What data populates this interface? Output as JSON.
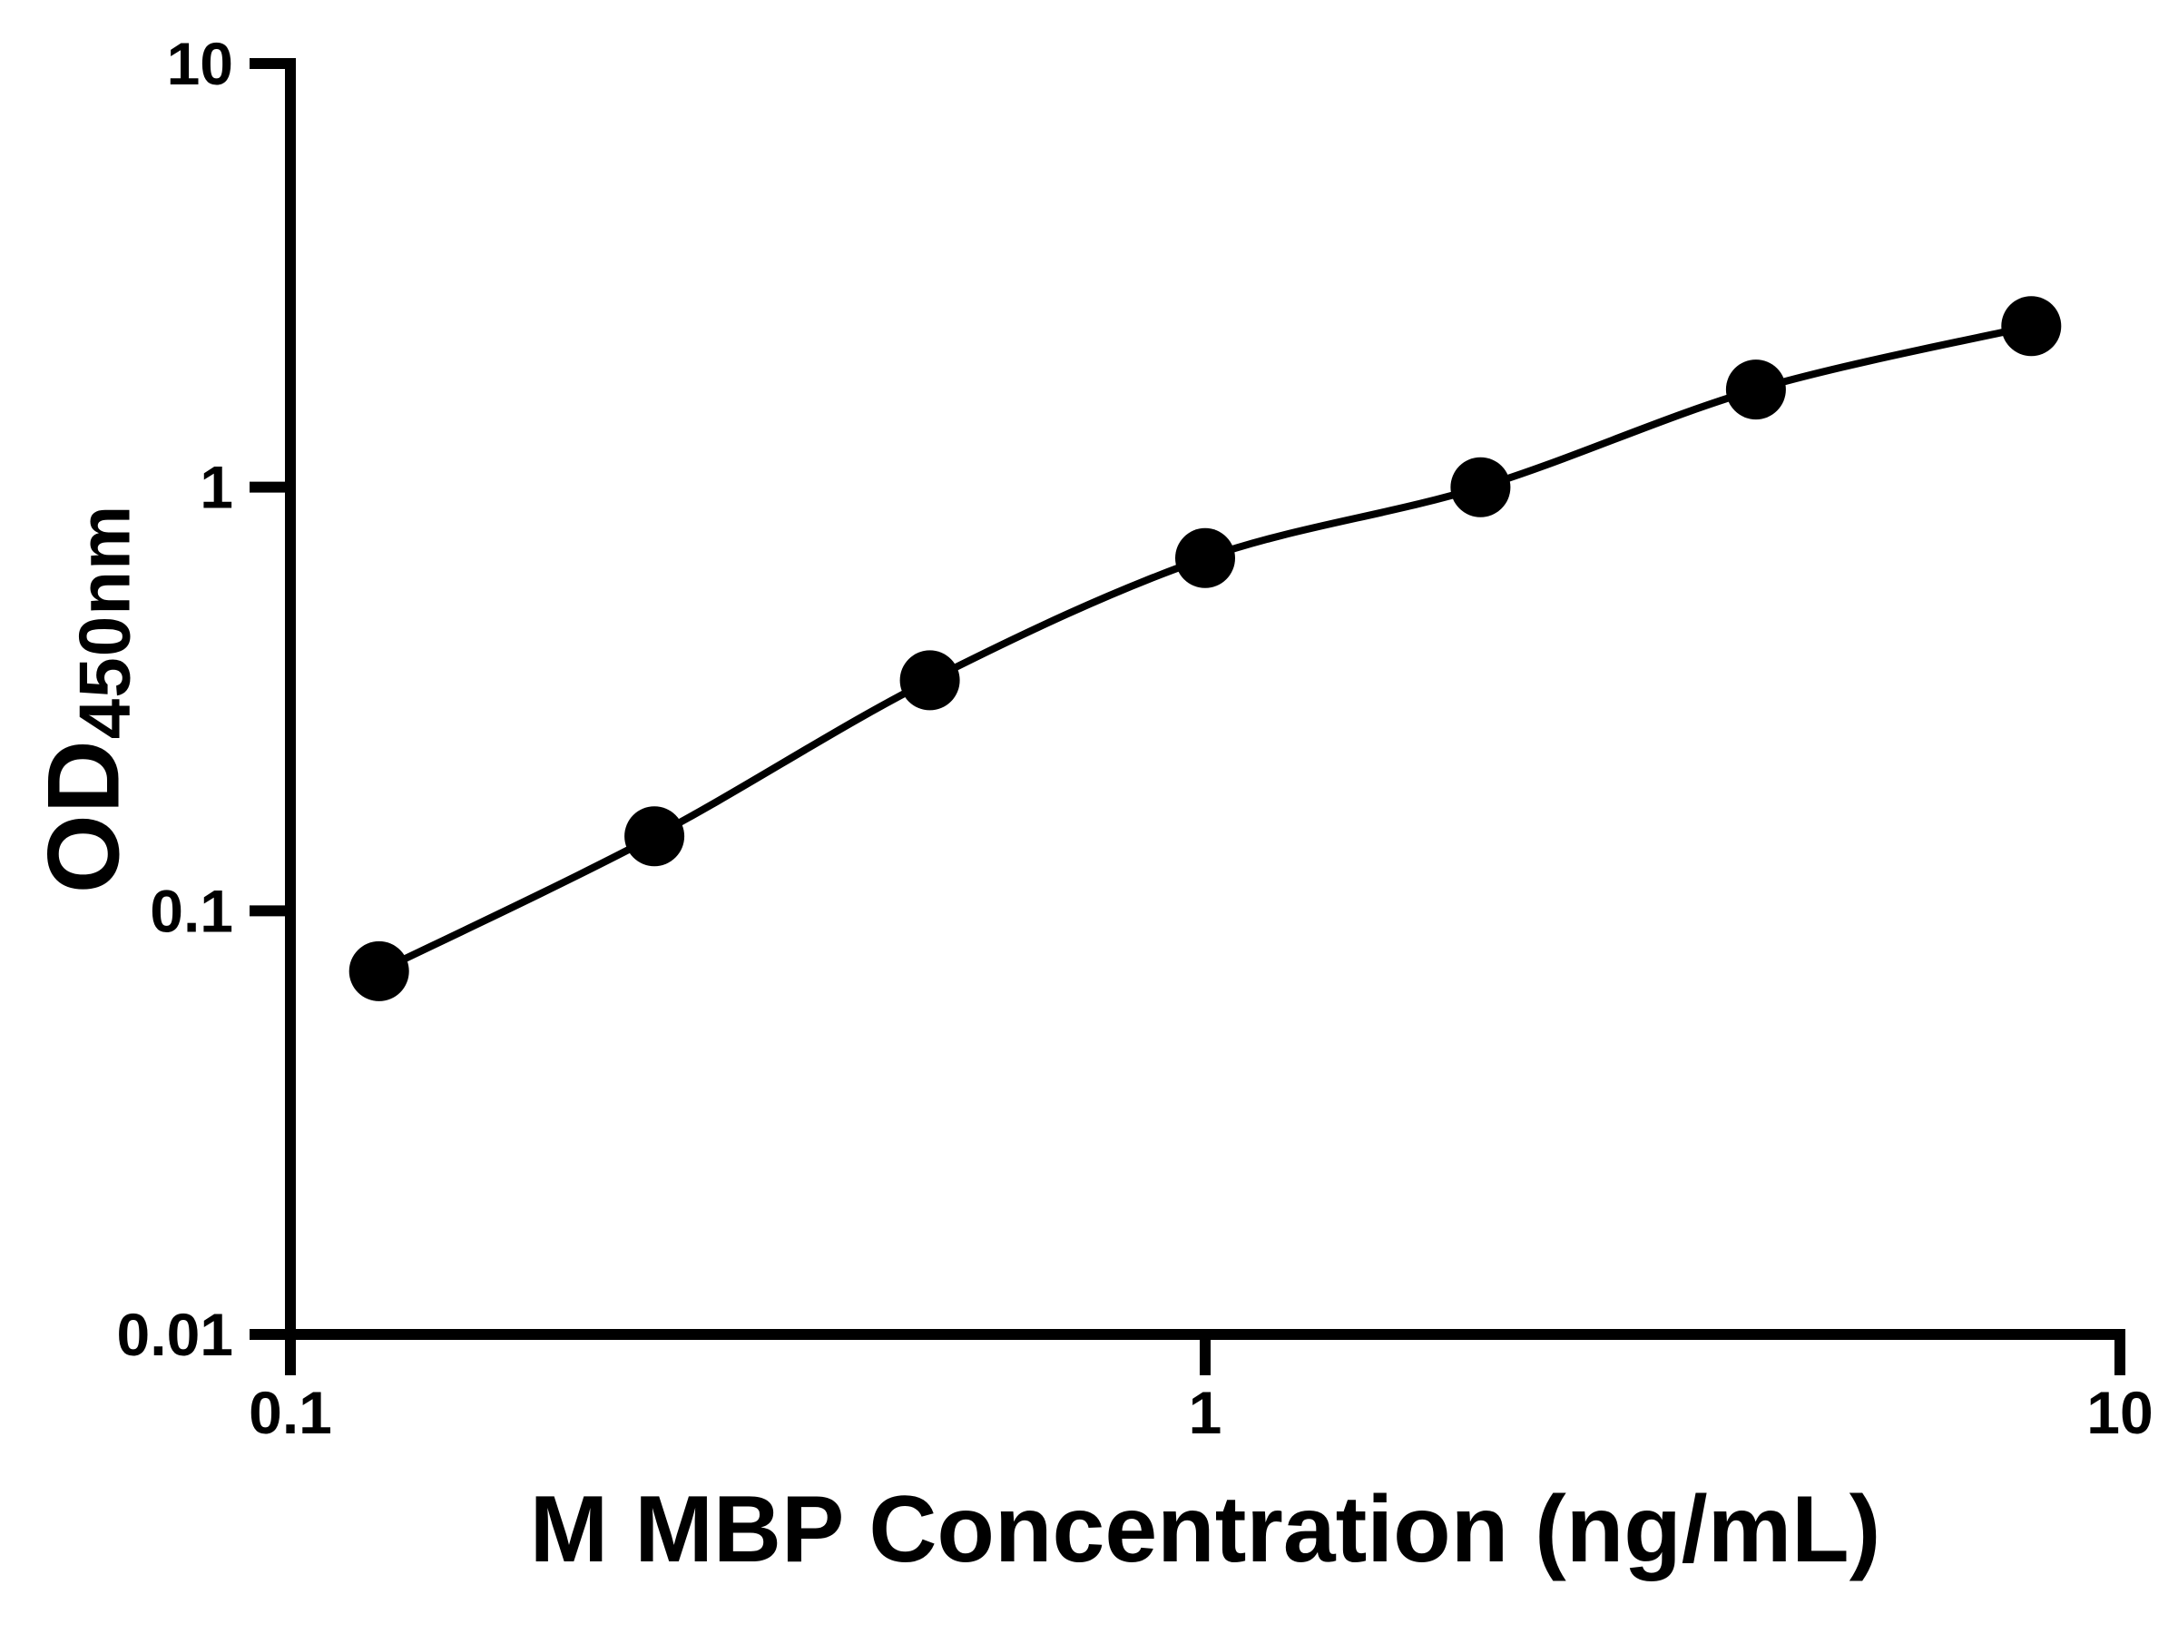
{
  "figure": {
    "background": "#ffffff"
  },
  "chart_data": {
    "type": "scatter",
    "title": "",
    "xlabel": "M MBP Concentration (ng/mL)",
    "ylabel_main": "OD",
    "ylabel_sub": "450nm",
    "xscale": "log",
    "yscale": "log",
    "xlim": [
      0.1,
      10
    ],
    "ylim": [
      0.01,
      10
    ],
    "grid": false,
    "legend": "none",
    "x": [
      0.125,
      0.25,
      0.5,
      1,
      2,
      4,
      8
    ],
    "y": [
      0.072,
      0.15,
      0.35,
      0.68,
      1.0,
      1.7,
      2.4
    ],
    "curve_style": "smooth-fit-through-points",
    "xticks": [
      {
        "value": 0.1,
        "label": "0.1"
      },
      {
        "value": 1,
        "label": "1"
      },
      {
        "value": 10,
        "label": "10"
      }
    ],
    "yticks": [
      {
        "value": 0.01,
        "label": "0.01"
      },
      {
        "value": 0.1,
        "label": "0.1"
      },
      {
        "value": 1,
        "label": "1"
      },
      {
        "value": 10,
        "label": "10"
      }
    ],
    "axis_color": "#000000",
    "line_color": "#000000",
    "marker_color": "#000000"
  }
}
